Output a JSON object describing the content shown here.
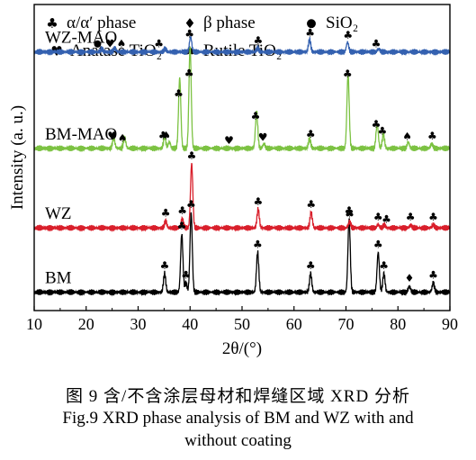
{
  "caption": {
    "zh": "图 9   含/不含涂层母材和焊缝区域 XRD 分析",
    "en_line1": "Fig.9 XRD phase analysis of BM and WZ with and",
    "en_line2": "without coating"
  },
  "chart_data": {
    "type": "line",
    "xlabel": "2θ/(°)",
    "ylabel": "Intensity (a. u.)",
    "xlim": [
      10,
      90
    ],
    "xticks": [
      "10",
      "20",
      "30",
      "40",
      "50",
      "60",
      "70",
      "80",
      "90"
    ],
    "grid": false,
    "legend": {
      "placement": "top",
      "entries": [
        {
          "symbol": "club",
          "label": "α/α′ phase"
        },
        {
          "symbol": "diamond",
          "label": "β phase"
        },
        {
          "symbol": "circle",
          "label": "SiO₂"
        },
        {
          "symbol": "heart",
          "label": "Anatase TiO₂"
        },
        {
          "symbol": "spade",
          "label": "Rutile TiO₂"
        }
      ]
    },
    "series": [
      {
        "name": "BM",
        "color": "#000000",
        "baseline": 0.06,
        "peaks": [
          {
            "x": 35.1,
            "h": 0.06
          },
          {
            "x": 38.4,
            "h": 0.19
          },
          {
            "x": 39.2,
            "h": 0.03
          },
          {
            "x": 40.2,
            "h": 0.26
          },
          {
            "x": 53.0,
            "h": 0.13
          },
          {
            "x": 63.2,
            "h": 0.06
          },
          {
            "x": 70.6,
            "h": 0.24
          },
          {
            "x": 76.2,
            "h": 0.13
          },
          {
            "x": 77.3,
            "h": 0.06
          },
          {
            "x": 82.2,
            "h": 0.02
          },
          {
            "x": 86.8,
            "h": 0.03
          }
        ],
        "markers": [
          {
            "x": 35.1,
            "symbol": "club"
          },
          {
            "x": 38.4,
            "symbol": "club"
          },
          {
            "x": 39.2,
            "symbol": "club"
          },
          {
            "x": 40.2,
            "symbol": "club"
          },
          {
            "x": 53.0,
            "symbol": "club"
          },
          {
            "x": 63.2,
            "symbol": "club"
          },
          {
            "x": 70.6,
            "symbol": "club"
          },
          {
            "x": 76.2,
            "symbol": "club"
          },
          {
            "x": 77.3,
            "symbol": "club"
          },
          {
            "x": 82.2,
            "symbol": "diamond"
          },
          {
            "x": 86.8,
            "symbol": "club"
          }
        ]
      },
      {
        "name": "WZ",
        "color": "#d91f2b",
        "baseline": 0.27,
        "peaks": [
          {
            "x": 35.3,
            "h": 0.022
          },
          {
            "x": 38.5,
            "h": 0.03
          },
          {
            "x": 40.3,
            "h": 0.21
          },
          {
            "x": 53.1,
            "h": 0.06
          },
          {
            "x": 63.3,
            "h": 0.05
          },
          {
            "x": 70.7,
            "h": 0.02
          },
          {
            "x": 76.2,
            "h": 0.01
          },
          {
            "x": 77.4,
            "h": 0.01
          },
          {
            "x": 82.4,
            "h": 0.01
          },
          {
            "x": 86.8,
            "h": 0.01
          }
        ],
        "markers": [
          {
            "x": 35.3,
            "symbol": "club"
          },
          {
            "x": 38.5,
            "symbol": "club"
          },
          {
            "x": 40.3,
            "symbol": "club"
          },
          {
            "x": 53.1,
            "symbol": "club"
          },
          {
            "x": 63.3,
            "symbol": "club"
          },
          {
            "x": 70.7,
            "symbol": "club"
          },
          {
            "x": 76.2,
            "symbol": "club"
          },
          {
            "x": 77.8,
            "symbol": "club"
          },
          {
            "x": 82.4,
            "symbol": "club"
          },
          {
            "x": 86.8,
            "symbol": "club"
          }
        ]
      },
      {
        "name": "BM-MAO",
        "color": "#7cc242",
        "baseline": 0.53,
        "peaks": [
          {
            "x": 25.3,
            "h": 0.035
          },
          {
            "x": 27.4,
            "h": 0.035
          },
          {
            "x": 35.1,
            "h": 0.04
          },
          {
            "x": 36.0,
            "h": 0.02
          },
          {
            "x": 38.0,
            "h": 0.23
          },
          {
            "x": 40.0,
            "h": 0.33
          },
          {
            "x": 52.8,
            "h": 0.12
          },
          {
            "x": 54.2,
            "h": 0.015
          },
          {
            "x": 63.0,
            "h": 0.03
          },
          {
            "x": 70.4,
            "h": 0.24
          },
          {
            "x": 76.0,
            "h": 0.08
          },
          {
            "x": 77.2,
            "h": 0.045
          },
          {
            "x": 82.0,
            "h": 0.02
          },
          {
            "x": 86.5,
            "h": 0.015
          }
        ],
        "markers": [
          {
            "x": 25.0,
            "symbol": "heart"
          },
          {
            "x": 27.0,
            "symbol": "spade"
          },
          {
            "x": 34.8,
            "symbol": "club"
          },
          {
            "x": 35.4,
            "symbol": "spade"
          },
          {
            "x": 37.8,
            "symbol": "club"
          },
          {
            "x": 39.8,
            "symbol": "club"
          },
          {
            "x": 47.5,
            "symbol": "heart"
          },
          {
            "x": 52.6,
            "symbol": "club"
          },
          {
            "x": 54.0,
            "symbol": "heart"
          },
          {
            "x": 63.2,
            "symbol": "club"
          },
          {
            "x": 70.3,
            "symbol": "club"
          },
          {
            "x": 75.8,
            "symbol": "club"
          },
          {
            "x": 77.0,
            "symbol": "club"
          },
          {
            "x": 81.8,
            "symbol": "spade"
          },
          {
            "x": 86.6,
            "symbol": "club"
          }
        ]
      },
      {
        "name": "WZ-MAO",
        "color": "#3461b0",
        "baseline": 0.845,
        "peaks": [
          {
            "x": 23.0,
            "h": 0.01
          },
          {
            "x": 25.5,
            "h": 0.012
          },
          {
            "x": 35.2,
            "h": 0.01
          },
          {
            "x": 40.1,
            "h": 0.05
          },
          {
            "x": 53.0,
            "h": 0.012
          },
          {
            "x": 63.0,
            "h": 0.04
          },
          {
            "x": 70.3,
            "h": 0.032
          },
          {
            "x": 76.3,
            "h": 0.01
          }
        ],
        "markers": [
          {
            "x": 22.2,
            "symbol": "circle"
          },
          {
            "x": 24.6,
            "symbol": "heart"
          },
          {
            "x": 26.8,
            "symbol": "spade"
          },
          {
            "x": 34.0,
            "symbol": "club"
          },
          {
            "x": 39.9,
            "symbol": "club"
          },
          {
            "x": 53.1,
            "symbol": "club"
          },
          {
            "x": 63.1,
            "symbol": "club"
          },
          {
            "x": 70.4,
            "symbol": "club"
          },
          {
            "x": 75.8,
            "symbol": "club"
          }
        ]
      }
    ]
  }
}
